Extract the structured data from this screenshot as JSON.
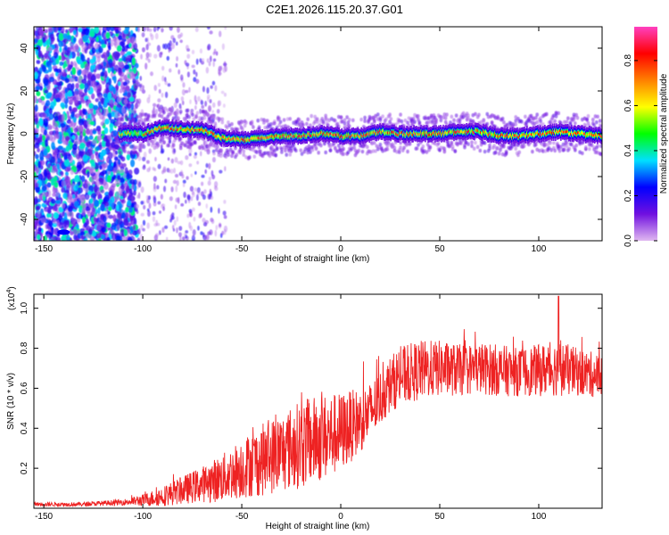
{
  "figure_title": "C2E1.2026.115.20.37.G01",
  "chart_data": [
    {
      "type": "heatmap",
      "title": "C2E1.2026.115.20.37.G01",
      "xlabel": "Height of straight line (km)",
      "ylabel": "Frequency (Hz)",
      "xlim": [
        -155,
        132
      ],
      "ylim": [
        -50,
        50
      ],
      "x_ticks": [
        -150,
        -100,
        -50,
        0,
        50,
        100
      ],
      "x_tick_labels": [
        "-150",
        "-100",
        "-50",
        "0",
        "50",
        "100"
      ],
      "y_ticks": [
        -40,
        -20,
        0,
        20,
        40
      ],
      "y_tick_labels": [
        "-40",
        "-20",
        "0",
        "20",
        "40"
      ],
      "ridge_frequency_hz": {
        "x": [
          -155,
          -110,
          -100,
          -90,
          -80,
          -70,
          -60,
          -50,
          -40,
          -30,
          -20,
          -10,
          0,
          10,
          20,
          30,
          40,
          50,
          60,
          70,
          80,
          90,
          100,
          110,
          120,
          132
        ],
        "y": [
          0,
          0,
          0,
          3,
          2,
          2,
          -2,
          -3,
          -2,
          -1,
          -1,
          0,
          -1,
          -1,
          1,
          0,
          0,
          0,
          1,
          1,
          -1,
          -1,
          0,
          1,
          0,
          -1
        ]
      },
      "colorbar": {
        "label": "Normalized spectral amplitude",
        "range": [
          0,
          0.95
        ],
        "ticks": [
          0.0,
          0.2,
          0.4,
          0.6,
          0.8
        ],
        "tick_labels": [
          "0.0",
          "0.2",
          "0.4",
          "0.6",
          "0.8"
        ],
        "colormap": [
          "#e0b8f0",
          "#7010e0",
          "#0000ff",
          "#00e0ff",
          "#00ff00",
          "#ffff00",
          "#ff8000",
          "#ff0000",
          "#ff40c0"
        ]
      }
    },
    {
      "type": "line",
      "xlabel": "Height of straight line (km)",
      "ylabel": "SNR (10 * v/v)",
      "y_scale_label": "(x10",
      "y_scale_exponent": "4",
      "y_scale_close": ")",
      "xlim": [
        -155,
        132
      ],
      "ylim": [
        0.0,
        1.07
      ],
      "x_ticks": [
        -150,
        -100,
        -50,
        0,
        50,
        100
      ],
      "x_tick_labels": [
        "-150",
        "-100",
        "-50",
        "0",
        "50",
        "100"
      ],
      "y_ticks": [
        0.2,
        0.4,
        0.6,
        0.8,
        1.0
      ],
      "y_tick_labels": [
        "0.2",
        "0.4",
        "0.6",
        "0.8",
        "1.0"
      ],
      "series": [
        {
          "name": "SNR",
          "color": "#ee2222",
          "envelope": {
            "x": [
              -155,
              -130,
              -110,
              -100,
              -90,
              -80,
              -70,
              -60,
              -50,
              -40,
              -30,
              -20,
              -10,
              0,
              10,
              15,
              20,
              25,
              30,
              40,
              50,
              60,
              70,
              80,
              90,
              100,
              110,
              120,
              132
            ],
            "mean": [
              0.02,
              0.02,
              0.03,
              0.04,
              0.06,
              0.09,
              0.12,
              0.15,
              0.2,
              0.24,
              0.28,
              0.32,
              0.35,
              0.38,
              0.44,
              0.48,
              0.55,
              0.62,
              0.66,
              0.69,
              0.7,
              0.69,
              0.7,
              0.69,
              0.68,
              0.69,
              0.7,
              0.68,
              0.66
            ],
            "amp": [
              0.01,
              0.01,
              0.015,
              0.03,
              0.05,
              0.07,
              0.09,
              0.12,
              0.15,
              0.18,
              0.2,
              0.22,
              0.22,
              0.2,
              0.16,
              0.15,
              0.14,
              0.14,
              0.15,
              0.15,
              0.14,
              0.13,
              0.13,
              0.13,
              0.12,
              0.13,
              0.14,
              0.12,
              0.11
            ]
          },
          "peak": {
            "x": 110,
            "y": 1.06
          }
        }
      ]
    }
  ]
}
